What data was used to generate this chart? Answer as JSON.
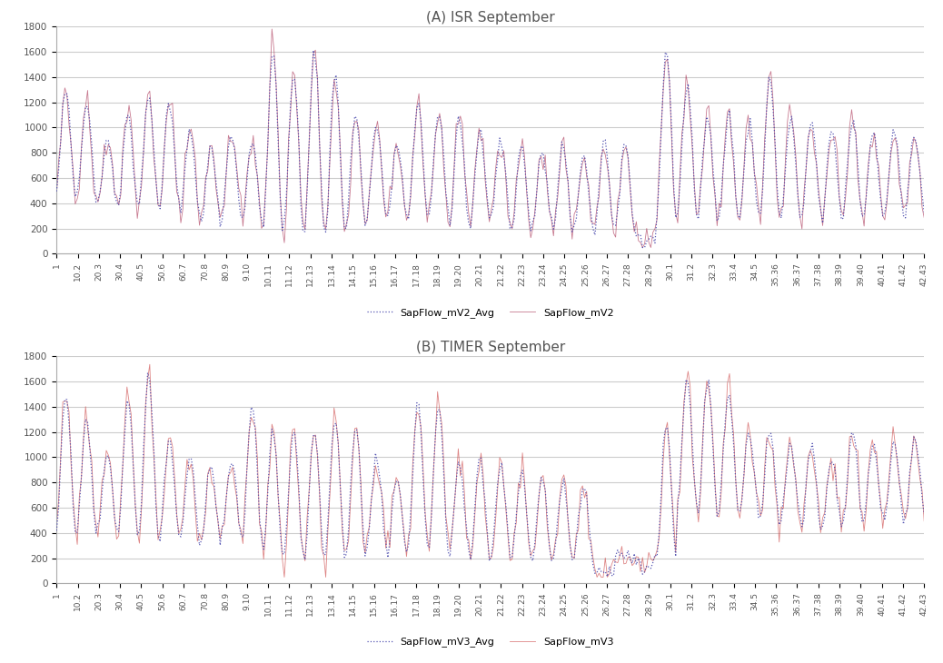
{
  "title_A": "(A) ISR September",
  "title_B": "(B) TIMER September",
  "legend_A_dot": "SapFlow_mV2_Avg",
  "legend_A_line": "SapFlow_mV2",
  "legend_B_dot": "SapFlow_mV3_Avg",
  "legend_B_line": "SapFlow_mV3",
  "ylim": [
    0,
    1800
  ],
  "yticks": [
    0,
    200,
    400,
    600,
    800,
    1000,
    1200,
    1400,
    1600,
    1800
  ],
  "dot_color": "#4444aa",
  "line_color_A": "#aa3355",
  "line_color_B": "#cc4444",
  "bg_color": "#ffffff",
  "grid_color": "#cccccc",
  "n_points": 420,
  "x_tick_labels": [
    "1",
    "10.2",
    "20.3",
    "30.4",
    "40.5",
    "50.6",
    "60.7",
    "70.8",
    "80.9",
    "9.10",
    "10.11",
    "11.12",
    "12.13",
    "13.14",
    "14.15",
    "15.16",
    "16.17",
    "17.18",
    "18.19",
    "19.20",
    "20.21",
    "21.22",
    "22.23",
    "23.24",
    "24.25",
    "25.26",
    "26.27",
    "27.28",
    "28.29",
    "30.1",
    "31.2",
    "32.3",
    "33.4",
    "34.5",
    "35.36",
    "36.37",
    "37.38",
    "38.39",
    "39.40",
    "40.41",
    "41.42",
    "42.43"
  ]
}
